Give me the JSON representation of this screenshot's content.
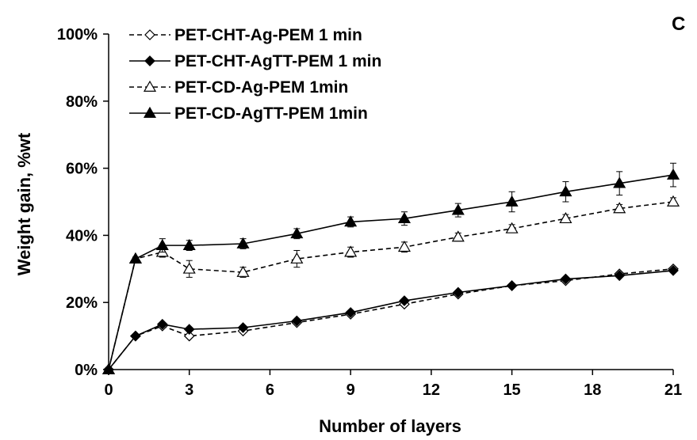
{
  "chart_data": {
    "type": "line",
    "panel_label": "C",
    "xlabel": "Number of layers",
    "ylabel": "Weight gain, %wt",
    "xlim": [
      0,
      21
    ],
    "ylim": [
      0,
      100
    ],
    "x_ticks": [
      0,
      3,
      6,
      9,
      12,
      15,
      18,
      21
    ],
    "y_ticks": [
      0,
      20,
      40,
      60,
      80,
      100
    ],
    "y_tick_labels": [
      "0%",
      "20%",
      "40%",
      "60%",
      "80%",
      "100%"
    ],
    "grid": false,
    "legend_position": "top-left",
    "series": [
      {
        "name": "PET-CHT-Ag-PEM 1 min",
        "line_style": "dashed",
        "marker": "open-diamond",
        "x": [
          0,
          1,
          2,
          3,
          5,
          7,
          9,
          11,
          13,
          15,
          17,
          19,
          21
        ],
        "y": [
          0,
          10,
          13,
          10,
          11.5,
          14,
          16.5,
          19.5,
          22.5,
          25,
          26.5,
          28.5,
          30
        ],
        "err": [
          0,
          0,
          0,
          0,
          0,
          0,
          0,
          0,
          0,
          0,
          0,
          0,
          0
        ]
      },
      {
        "name": "PET-CHT-AgTT-PEM 1 min",
        "line_style": "solid",
        "marker": "filled-diamond",
        "x": [
          0,
          1,
          2,
          3,
          5,
          7,
          9,
          11,
          13,
          15,
          17,
          19,
          21
        ],
        "y": [
          0,
          10,
          13.5,
          12,
          12.5,
          14.5,
          17,
          20.5,
          23,
          25,
          27,
          28,
          29.5
        ],
        "err": [
          0,
          0,
          0,
          0,
          0,
          0,
          0,
          0,
          0,
          0,
          0,
          0,
          0
        ]
      },
      {
        "name": "PET-CD-Ag-PEM 1min",
        "line_style": "dashed",
        "marker": "open-triangle",
        "x": [
          0,
          1,
          2,
          3,
          5,
          7,
          9,
          11,
          13,
          15,
          17,
          19,
          21
        ],
        "y": [
          0,
          33,
          35,
          30,
          29,
          33,
          35,
          36.5,
          39.5,
          42,
          45,
          48,
          50
        ],
        "err": [
          0,
          0.5,
          1.5,
          2.5,
          1.5,
          2.5,
          1.5,
          1.5,
          1.2,
          1.2,
          1.2,
          1.2,
          1.2
        ]
      },
      {
        "name": "PET-CD-AgTT-PEM 1min",
        "line_style": "solid",
        "marker": "filled-triangle",
        "x": [
          0,
          1,
          2,
          3,
          5,
          7,
          9,
          11,
          13,
          15,
          17,
          19,
          21
        ],
        "y": [
          0,
          33,
          37,
          37,
          37.5,
          40.5,
          44,
          45,
          47.5,
          50,
          53,
          55.5,
          58
        ],
        "err": [
          0,
          0.5,
          2,
          1.5,
          1.5,
          1.5,
          1.5,
          2,
          2,
          3,
          3,
          3.5,
          3.5
        ]
      }
    ]
  }
}
